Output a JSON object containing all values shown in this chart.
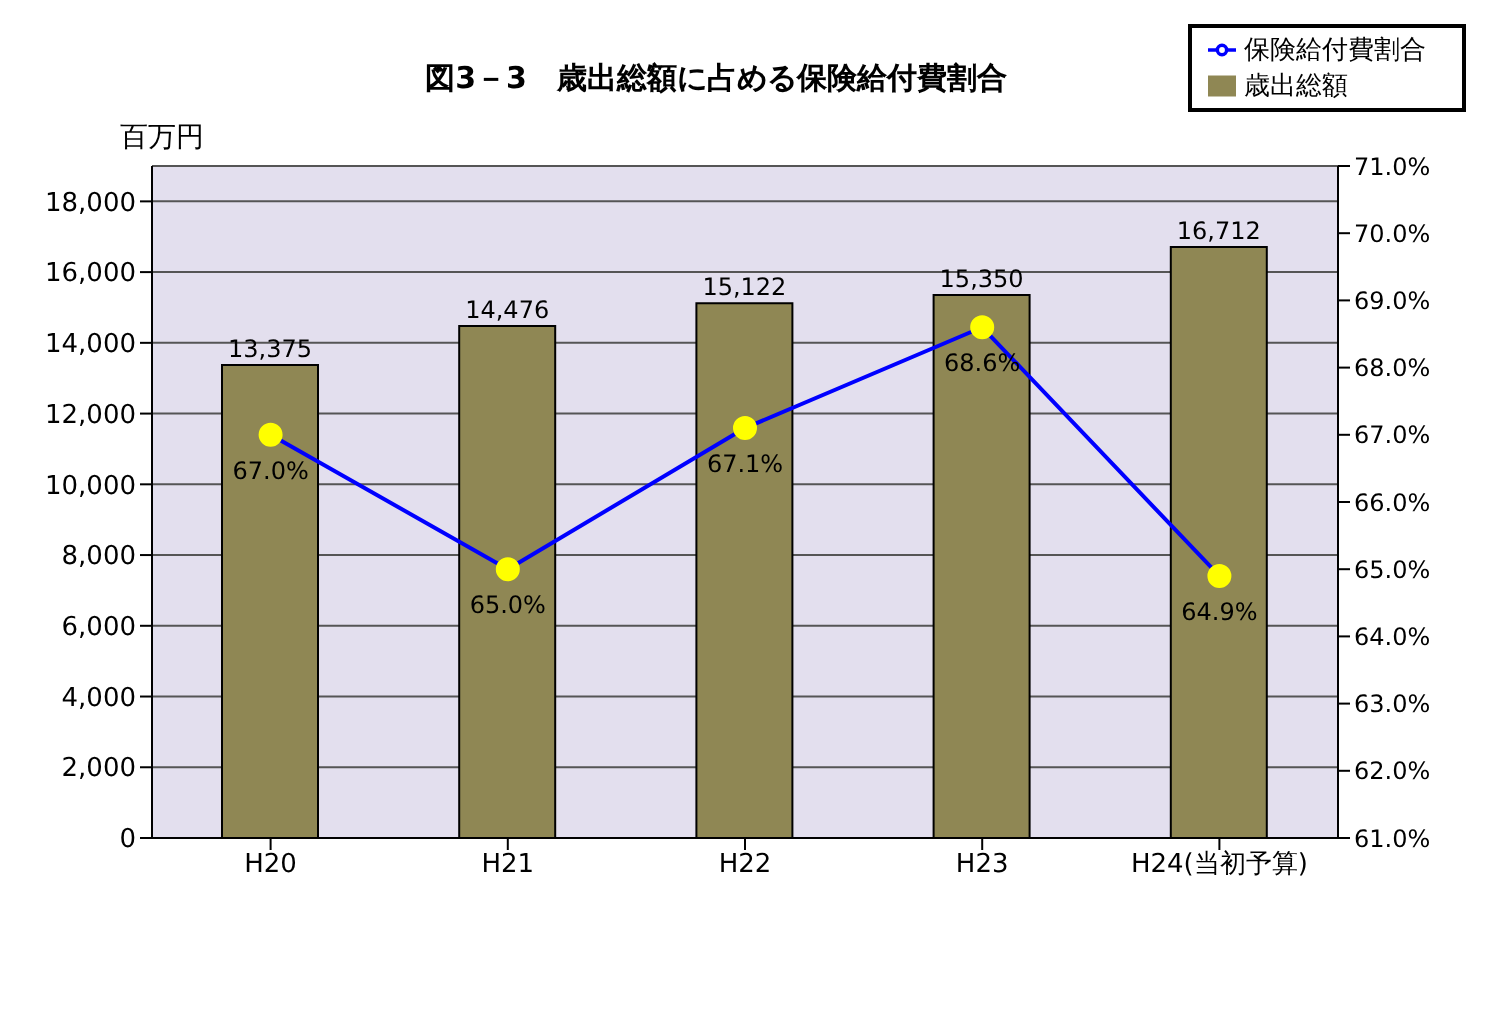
{
  "chart_data": {
    "type": "bar",
    "title": "図3－3　歳出総額に占める保険給付費割合",
    "ylabel": "百万円",
    "categories": [
      "H20",
      "H21",
      "H22",
      "H23",
      "H24(当初予算)"
    ],
    "series": [
      {
        "name": "歳出総額",
        "color": "#8f8754",
        "values": [
          13375,
          14476,
          15122,
          15350,
          16712
        ]
      },
      {
        "name": "保険給付費割合",
        "type": "line",
        "axis": "y2",
        "color": "#0000ff",
        "marker": "circle",
        "values": [
          67.0,
          65.0,
          67.1,
          68.6,
          64.9
        ],
        "value_labels": [
          "67.0%",
          "65.0%",
          "67.1%",
          "68.6%",
          "64.9%"
        ]
      }
    ],
    "ylim": [
      0,
      19000
    ],
    "yticks": [
      {
        "value": 0,
        "label": "0"
      },
      {
        "value": 2000,
        "label": "2,000"
      },
      {
        "value": 4000,
        "label": "4,000"
      },
      {
        "value": 6000,
        "label": "6,000"
      },
      {
        "value": 8000,
        "label": "8,000"
      },
      {
        "value": 10000,
        "label": "10,000"
      },
      {
        "value": 12000,
        "label": "12,000"
      },
      {
        "value": 14000,
        "label": "14,000"
      },
      {
        "value": 16000,
        "label": "16,000"
      },
      {
        "value": 18000,
        "label": "18,000"
      }
    ],
    "y2lim": [
      61,
      71
    ],
    "y2ticks": [
      {
        "value": 61,
        "label": "61.0%"
      },
      {
        "value": 62,
        "label": "62.0%"
      },
      {
        "value": 63,
        "label": "63.0%"
      },
      {
        "value": 64,
        "label": "64.0%"
      },
      {
        "value": 65,
        "label": "65.0%"
      },
      {
        "value": 66,
        "label": "66.0%"
      },
      {
        "value": 67,
        "label": "67.0%"
      },
      {
        "value": 68,
        "label": "68.0%"
      },
      {
        "value": 69,
        "label": "69.0%"
      },
      {
        "value": 70,
        "label": "70.0%"
      },
      {
        "value": 71,
        "label": "71.0%"
      }
    ],
    "value_labels": [
      "13,375",
      "14,476",
      "15,122",
      "15,350",
      "16,712"
    ],
    "grid": "y",
    "legend": "top right"
  }
}
